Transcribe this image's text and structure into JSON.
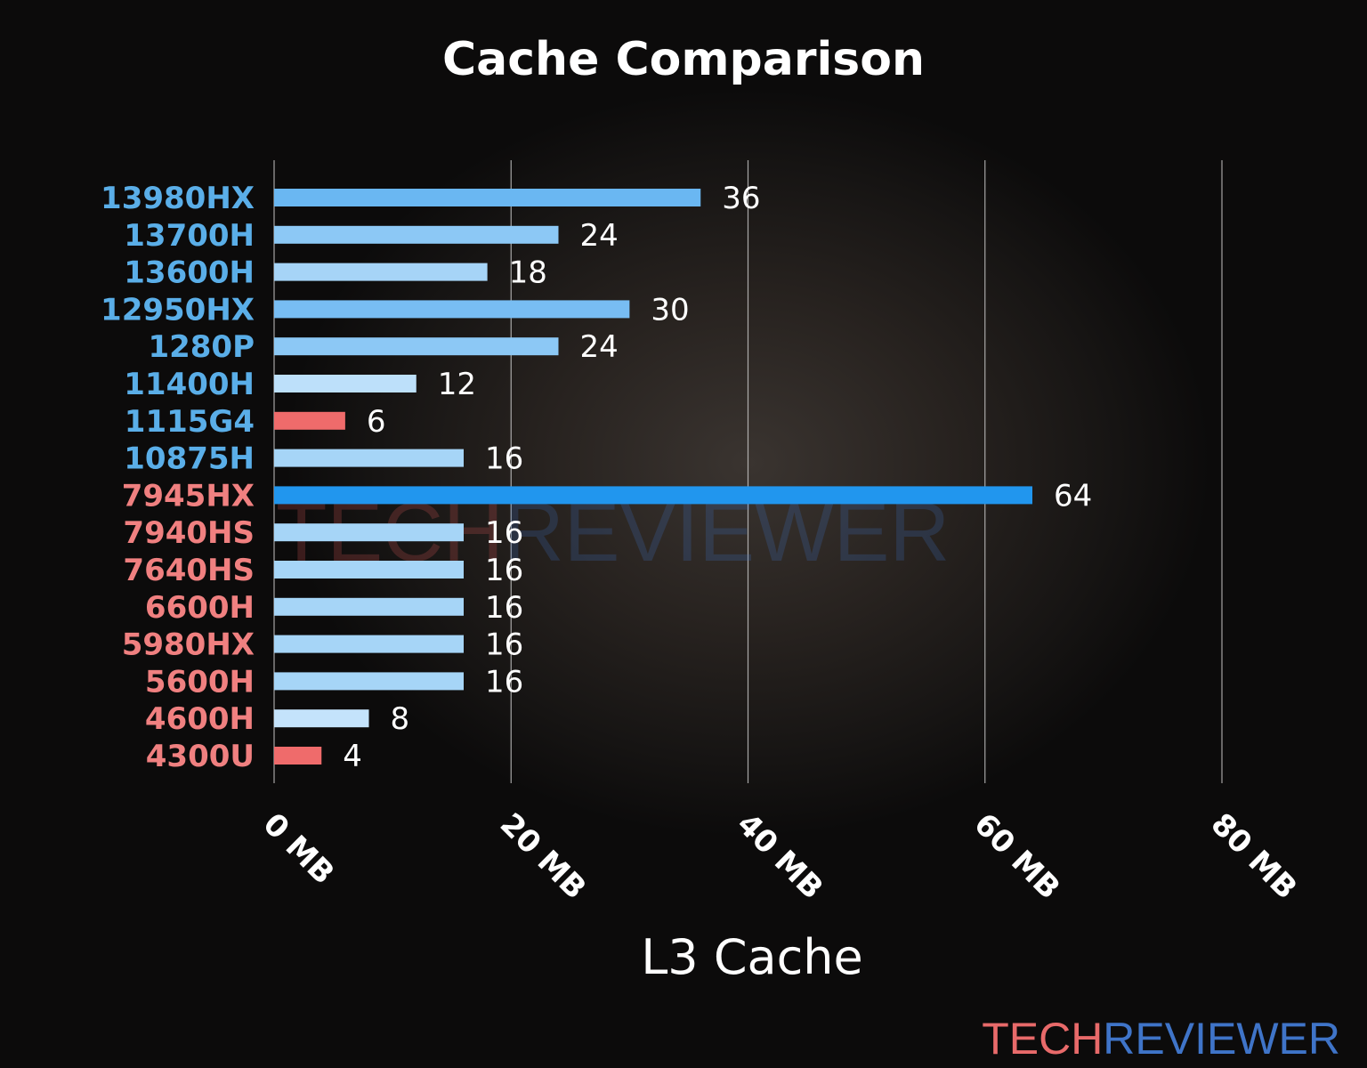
{
  "chart_data": {
    "type": "bar",
    "orientation": "horizontal",
    "title": "Cache Comparison",
    "xlabel": "L3 Cache",
    "ylabel": "",
    "xlim": [
      0,
      80
    ],
    "x_ticks": [
      "0 MB",
      "20 MB",
      "40 MB",
      "60 MB",
      "80 MB"
    ],
    "grid": true,
    "categories": [
      "13980HX",
      "13700H",
      "13600H",
      "12950HX",
      "1280P",
      "11400H",
      "1115G4",
      "10875H",
      "7945HX",
      "7940HS",
      "7640HS",
      "6600H",
      "5980HX",
      "5600H",
      "4600H",
      "4300U"
    ],
    "values": [
      36,
      24,
      18,
      30,
      24,
      12,
      6,
      16,
      64,
      16,
      16,
      16,
      16,
      16,
      8,
      4
    ],
    "value_labels": [
      "36",
      "24",
      "18",
      "30",
      "24",
      "12",
      "6",
      "16",
      "64",
      "16",
      "16",
      "16",
      "16",
      "16",
      "8",
      "4"
    ],
    "category_colors": [
      "#5aaee8",
      "#5aaee8",
      "#5aaee8",
      "#5aaee8",
      "#5aaee8",
      "#5aaee8",
      "#5aaee8",
      "#5aaee8",
      "#f08080",
      "#f08080",
      "#f08080",
      "#f08080",
      "#f08080",
      "#f08080",
      "#f08080",
      "#f08080"
    ],
    "bar_colors": [
      "#6ab7f2",
      "#8cc8f5",
      "#a6d4f7",
      "#78bdf3",
      "#8cc8f5",
      "#bde0fa",
      "#ef6b6b",
      "#a6d5f7",
      "#2196ee",
      "#a6d5f7",
      "#a6d5f7",
      "#a6d5f7",
      "#a6d5f7",
      "#a6d5f7",
      "#c4e3fb",
      "#ef6b6b"
    ]
  },
  "watermark": {
    "part1": "TECH",
    "part2": "REVIEWER",
    "color1": "#e05a5a",
    "color2": "#3f74c8"
  },
  "logo": {
    "part1": "TECH",
    "part2": "REVIEWER",
    "color1": "#e86a6a",
    "color2": "#3f74c8"
  }
}
